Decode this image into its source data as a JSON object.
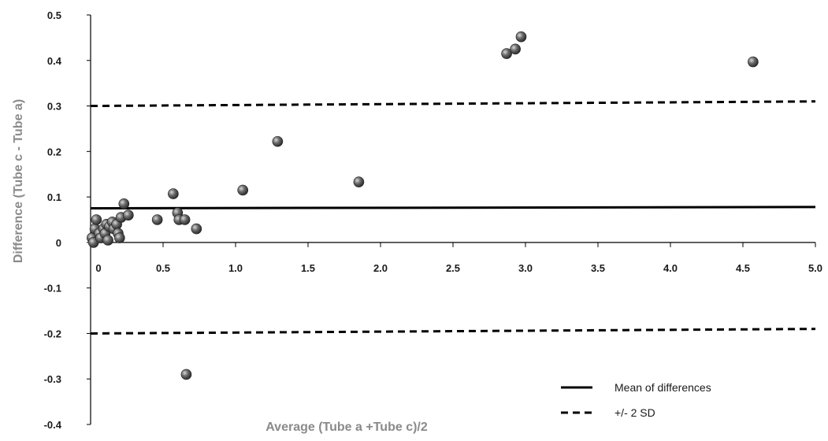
{
  "chart_data": {
    "type": "scatter",
    "title": "",
    "xlabel": "Average (Tube a +Tube c)/2",
    "ylabel": "Difference (Tube c - Tube a)",
    "xlim": [
      0,
      5.0
    ],
    "ylim": [
      -0.4,
      0.5
    ],
    "x_ticks": [
      0,
      0.5,
      1.0,
      1.5,
      2.0,
      2.5,
      3.0,
      3.5,
      4.0,
      4.5,
      5.0
    ],
    "x_tick_labels": [
      "0",
      "0.5",
      "1.0",
      "1.5",
      "2.0",
      "2.5",
      "3.0",
      "3.5",
      "4.0",
      "4.5",
      "5.0"
    ],
    "y_ticks": [
      0.5,
      0.4,
      0.3,
      0.2,
      0.1,
      0,
      -0.1,
      -0.2,
      -0.3,
      -0.4
    ],
    "y_tick_labels": [
      "0.5",
      "0.4",
      "0.3",
      "0.2",
      "0.1",
      "0",
      "-0.1",
      "-0.2",
      "-0.3",
      "-0.4"
    ],
    "grid": false,
    "legend_position": "bottom-right",
    "points": [
      {
        "x": 0.01,
        "y": 0.01
      },
      {
        "x": 0.02,
        "y": 0.0
      },
      {
        "x": 0.03,
        "y": 0.03
      },
      {
        "x": 0.04,
        "y": 0.05
      },
      {
        "x": 0.06,
        "y": 0.02
      },
      {
        "x": 0.07,
        "y": 0.01
      },
      {
        "x": 0.09,
        "y": 0.03
      },
      {
        "x": 0.1,
        "y": 0.02
      },
      {
        "x": 0.11,
        "y": 0.04
      },
      {
        "x": 0.12,
        "y": 0.005
      },
      {
        "x": 0.13,
        "y": 0.035
      },
      {
        "x": 0.15,
        "y": 0.045
      },
      {
        "x": 0.16,
        "y": 0.03
      },
      {
        "x": 0.18,
        "y": 0.04
      },
      {
        "x": 0.19,
        "y": 0.02
      },
      {
        "x": 0.2,
        "y": 0.01
      },
      {
        "x": 0.21,
        "y": 0.055
      },
      {
        "x": 0.23,
        "y": 0.085
      },
      {
        "x": 0.26,
        "y": 0.06
      },
      {
        "x": 0.46,
        "y": 0.05
      },
      {
        "x": 0.57,
        "y": 0.107
      },
      {
        "x": 0.6,
        "y": 0.065
      },
      {
        "x": 0.61,
        "y": 0.05
      },
      {
        "x": 0.65,
        "y": 0.05
      },
      {
        "x": 0.66,
        "y": -0.29
      },
      {
        "x": 0.73,
        "y": 0.03
      },
      {
        "x": 1.05,
        "y": 0.115
      },
      {
        "x": 1.29,
        "y": 0.222
      },
      {
        "x": 1.85,
        "y": 0.133
      },
      {
        "x": 2.87,
        "y": 0.415
      },
      {
        "x": 2.93,
        "y": 0.425
      },
      {
        "x": 2.97,
        "y": 0.452
      },
      {
        "x": 4.57,
        "y": 0.397
      }
    ],
    "lines": [
      {
        "name": "Mean of differences",
        "style": "solid",
        "x": [
          0,
          5.0
        ],
        "y": [
          0.075,
          0.078
        ]
      },
      {
        "name": "+/- 2 SD",
        "style": "dashed",
        "x": [
          0,
          5.0
        ],
        "y": [
          0.3,
          0.31
        ]
      },
      {
        "name": "+/- 2 SD",
        "style": "dashed",
        "x": [
          0,
          5.0
        ],
        "y": [
          -0.2,
          -0.19
        ]
      }
    ],
    "legend": [
      {
        "label": "Mean of differences",
        "style": "solid"
      },
      {
        "label": "+/- 2 SD",
        "style": "dashed"
      }
    ],
    "colors": {
      "marker": "#4a4a4a",
      "line": "#000000",
      "axis_title": "#8a8a8a"
    }
  }
}
